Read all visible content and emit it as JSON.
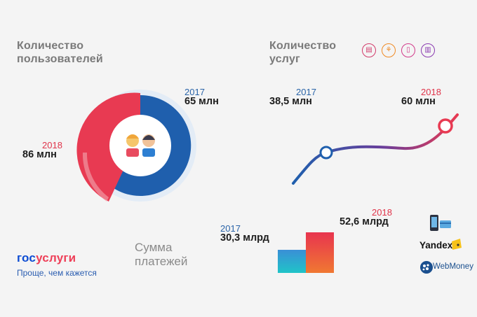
{
  "users": {
    "heading_line1": "Количество",
    "heading_line2": "пользователей",
    "y2017": "2017",
    "v2017": "65 млн",
    "y2018": "2018",
    "v2018": "86 млн"
  },
  "services": {
    "heading_line1": "Количество",
    "heading_line2": "услуг",
    "y2017": "2017",
    "v2017": "38,5 млн",
    "y2018": "2018",
    "v2018": "60 млн",
    "icons": [
      "document-icon",
      "flowchart-icon",
      "file-icon",
      "clipboard-icon"
    ]
  },
  "payments": {
    "heading_line1": "Сумма",
    "heading_line2": "платежей",
    "y2017": "2017",
    "v2017": "30,3 млрд",
    "y2018": "2018",
    "v2018": "52,6 млрд",
    "values": [
      30.3,
      52.6
    ]
  },
  "payment_methods": {
    "yandex_label": "Yandex",
    "webmoney_label": "WebMoney",
    "icons": [
      "phone-card-icon",
      "yandex-wallet-icon",
      "webmoney-globe-icon"
    ]
  },
  "brand": {
    "logo_part1": "гос",
    "logo_part2": "услуги",
    "tagline": "Проще, чем кажется"
  },
  "colors": {
    "blue": "#1f5fad",
    "red": "#e83a52",
    "teal": "#20c4c8",
    "orange": "#f07832"
  }
}
